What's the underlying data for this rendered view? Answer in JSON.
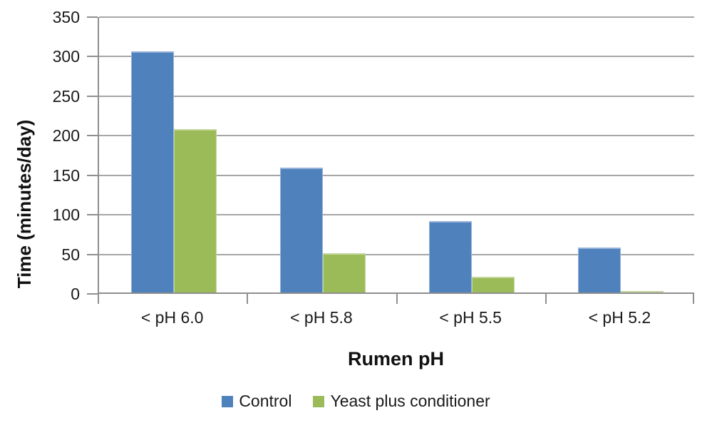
{
  "chart_data": {
    "type": "bar",
    "title": "",
    "categories": [
      "< pH 6.0",
      "< pH 5.8",
      "< pH 5.5",
      "< pH 5.2"
    ],
    "series": [
      {
        "name": "Control",
        "color": "#4F81BD",
        "border_color": "#95B3D7",
        "values": [
          305,
          158,
          90,
          57
        ]
      },
      {
        "name": "Yeast plus conditioner",
        "color": "#9BBB59",
        "border_color": "#C3D69B",
        "values": [
          207,
          50,
          20,
          2
        ]
      }
    ],
    "xlabel": "Rumen pH",
    "ylabel": "Time (minutes/day)",
    "ylim": [
      0,
      350
    ],
    "yticks": [
      0,
      50,
      100,
      150,
      200,
      250,
      300,
      350
    ],
    "grid": true,
    "legend_position": "bottom",
    "colors": {
      "background": "#FFFFFF",
      "gridline": "#A6A6A6",
      "axis": "#8F8F8F",
      "text": "#1A1A1A"
    }
  }
}
